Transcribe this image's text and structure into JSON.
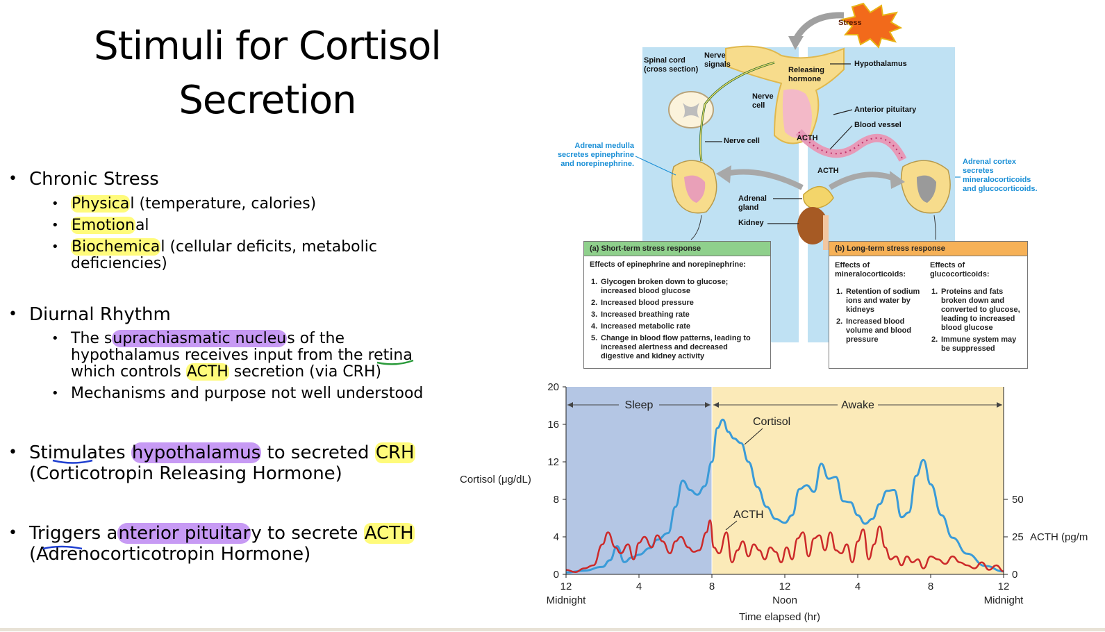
{
  "slide": {
    "title_line1": "Stimuli for Cortisol",
    "title_line2": "Secretion"
  },
  "bullets": {
    "chronic_stress": {
      "label": "Chronic Stress",
      "items": [
        {
          "hl": "Physica",
          "rest": "l (temperature, calories)"
        },
        {
          "hl": "Emotion",
          "rest": "al"
        },
        {
          "hl": "Biochemica",
          "rest": "l (cellular deficits, metabolic",
          "line2": "deficiencies)"
        }
      ]
    },
    "diurnal": {
      "label": "Diurnal Rhythm",
      "item1_a": "The s",
      "item1_hl": "uprachiasmatic nucleu",
      "item1_b": "s of the",
      "item1_line2": "hypothalamus receives input from the retina",
      "item1_line3_a": "which controls ",
      "item1_line3_hl": "ACTH",
      "item1_line3_b": " secretion (via CRH)",
      "item2": "Mechanisms and purpose not well understood"
    },
    "stim_hypo": {
      "a": "Stimulates ",
      "hl1": "hypothalamus",
      "b": " to secreted ",
      "hl2": "CRH",
      "line2": "(Corticotropin Releasing Hormone)"
    },
    "trig_pit": {
      "a": "Triggers a",
      "hl1": "nterior pituitar",
      "b": "y to secrete ",
      "hl2": "ACTH",
      "line2": "(Adrenocorticotropin Hormone)"
    }
  },
  "diagram": {
    "stress": "Stress",
    "spinal_cord": "Spinal cord\n(cross section)",
    "nerve_signals": "Nerve\nsignals",
    "releasing_hormone": "Releasing\nhormone",
    "hypothalamus": "Hypothalamus",
    "nerve_cell_top": "Nerve\ncell",
    "anterior_pituitary": "Anterior pituitary",
    "blood_vessel": "Blood vessel",
    "acth_in": "ACTH",
    "nerve_cell": "Nerve cell",
    "adrenal_medulla": "Adrenal medulla\nsecretes epinephrine\nand norepinephrine.",
    "acth_out": "ACTH",
    "adrenal_cortex": "Adrenal cortex\nsecretes\nmineralocorticoids\nand glucocorticoids.",
    "adrenal_gland": "Adrenal\ngland",
    "kidney": "Kidney",
    "short_term": {
      "title": "(a) Short-term stress response",
      "intro": "Effects of epinephrine and norepinephrine:",
      "items": [
        {
          "n": "1.",
          "t": "Glycogen broken down to glucose;\nincreased blood glucose"
        },
        {
          "n": "2.",
          "t": "Increased blood pressure"
        },
        {
          "n": "3.",
          "t": "Increased breathing rate"
        },
        {
          "n": "4.",
          "t": "Increased metabolic rate"
        },
        {
          "n": "5.",
          "t": "Change in blood flow patterns, leading to\nincreased alertness and decreased\ndigestive and kidney activity"
        }
      ]
    },
    "long_term": {
      "title": "(b) Long-term stress response",
      "col1_head": "Effects of\nmineralocorticoids:",
      "col2_head": "Effects of\nglucocorticoids:",
      "col1_items": [
        {
          "n": "1.",
          "t": "Retention of sodium\nions and water by\nkidneys"
        },
        {
          "n": "2.",
          "t": "Increased blood\nvolume and blood\npressure"
        }
      ],
      "col2_items": [
        {
          "n": "1.",
          "t": "Proteins and fats\nbroken down and\nconverted to glucose,\nleading to increased\nblood glucose"
        },
        {
          "n": "2.",
          "t": "Immune system may\nbe suppressed"
        }
      ]
    }
  },
  "chart_data": {
    "type": "line",
    "xlabel": "Time elapsed (hr)",
    "ylabel_left": "Cortisol (μg/dL)",
    "ylabel_right": "ACTH (pg/m",
    "xlim": [
      0,
      24
    ],
    "ylim_left": [
      0,
      20
    ],
    "ylim_right": [
      0,
      50
    ],
    "x_ticks": [
      {
        "v": 0,
        "top": "12",
        "bottom": "Midnight"
      },
      {
        "v": 4,
        "top": "4",
        "bottom": ""
      },
      {
        "v": 8,
        "top": "8",
        "bottom": ""
      },
      {
        "v": 12,
        "top": "12",
        "bottom": "Noon"
      },
      {
        "v": 16,
        "top": "4",
        "bottom": ""
      },
      {
        "v": 20,
        "top": "8",
        "bottom": ""
      },
      {
        "v": 24,
        "top": "12",
        "bottom": "Midnight"
      }
    ],
    "y_ticks_left": [
      "0",
      "4",
      "8",
      "12",
      "16",
      "20"
    ],
    "y_ticks_right": [
      "0",
      "25",
      "50"
    ],
    "regions": [
      {
        "label": "Sleep",
        "from": 0,
        "to": 8,
        "color": "#b4c6e4"
      },
      {
        "label": "Awake",
        "from": 8,
        "to": 24,
        "color": "#fbeab8"
      }
    ],
    "series": [
      {
        "name": "Cortisol",
        "color": "#3a9bd8",
        "x": [
          0,
          1,
          2,
          2.4,
          2.8,
          3.2,
          3.6,
          4,
          4.6,
          5,
          5.6,
          6,
          6.4,
          6.8,
          7.2,
          7.6,
          8,
          8.3,
          8.6,
          8.9,
          9.2,
          9.6,
          10,
          10.5,
          11,
          11.5,
          12,
          12.4,
          12.8,
          13.2,
          13.6,
          14,
          14.4,
          14.8,
          15.2,
          15.6,
          16,
          16.4,
          16.8,
          17.2,
          17.6,
          18,
          18.4,
          18.8,
          19.2,
          19.6,
          20,
          20.6,
          21.2,
          22,
          23,
          24
        ],
        "y": [
          0.2,
          0.4,
          0.8,
          1.5,
          3,
          1.3,
          1.8,
          2.1,
          2.8,
          3.7,
          4.4,
          7.2,
          10,
          9.0,
          8.5,
          9.4,
          12,
          15.6,
          16.5,
          15.2,
          14.5,
          14.0,
          12,
          9.3,
          7.2,
          5.9,
          5.5,
          6.3,
          9.1,
          9.5,
          8.8,
          11.8,
          10.2,
          10.4,
          7.8,
          7.7,
          6.3,
          5.4,
          5.9,
          7.5,
          8.9,
          9.0,
          6.1,
          6.6,
          10.5,
          12.2,
          9.6,
          6.3,
          3.9,
          2.2,
          0.9,
          0.3
        ]
      },
      {
        "name": "ACTH",
        "color": "#cc2a2a",
        "x": [
          0,
          0.5,
          1,
          1.5,
          2,
          2.3,
          2.7,
          3,
          3.4,
          3.7,
          4,
          4.3,
          4.7,
          5,
          5.3,
          5.7,
          6,
          6.3,
          6.7,
          7,
          7.3,
          7.7,
          7.9,
          8.1,
          8.4,
          8.8,
          9.1,
          9.4,
          9.7,
          10,
          10.3,
          10.6,
          10.9,
          11.2,
          11.5,
          11.8,
          12.1,
          12.4,
          12.7,
          13,
          13.3,
          13.6,
          13.9,
          14.2,
          14.5,
          14.8,
          15.1,
          15.4,
          15.7,
          16,
          16.3,
          16.6,
          16.9,
          17.2,
          17.5,
          17.8,
          18.1,
          18.4,
          18.7,
          19,
          19.3,
          19.6,
          20,
          20.4,
          20.8,
          21.2,
          21.6,
          22,
          22.4,
          22.8,
          23.2,
          23.6,
          24
        ],
        "y": [
          3,
          1.5,
          4,
          6,
          20,
          28,
          18,
          14,
          20,
          10,
          21,
          25,
          18,
          26,
          22,
          14,
          22,
          25,
          18,
          15,
          16,
          28,
          36,
          18,
          14,
          28,
          8,
          16,
          22,
          12,
          20,
          16,
          10,
          18,
          15,
          8,
          18,
          10,
          24,
          28,
          12,
          24,
          26,
          16,
          28,
          16,
          14,
          20,
          8,
          22,
          30,
          10,
          20,
          32,
          18,
          10,
          12,
          6,
          12,
          8,
          10,
          4,
          12,
          10,
          7,
          12,
          8,
          6,
          4,
          8,
          3,
          6,
          2
        ]
      }
    ],
    "labels": {
      "sleep": "Sleep",
      "awake": "Awake",
      "cortisol": "Cortisol",
      "acth": "ACTH"
    }
  }
}
